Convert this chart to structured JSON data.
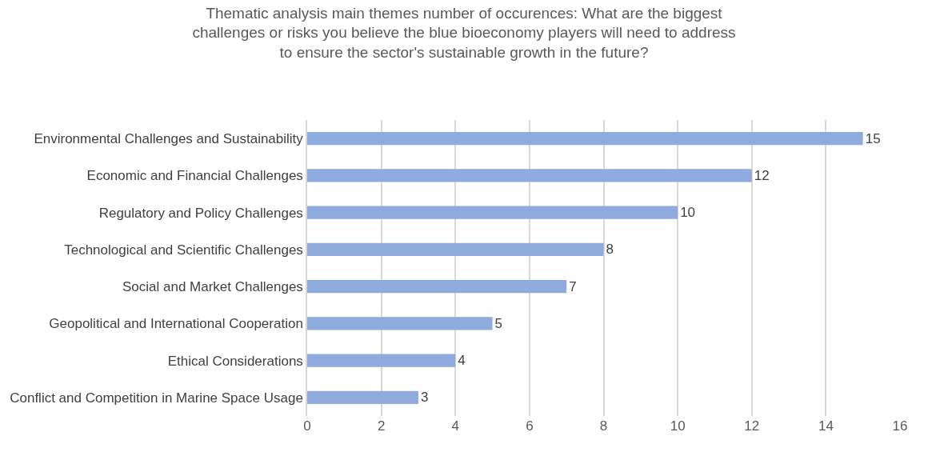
{
  "chart_data": {
    "type": "bar",
    "orientation": "horizontal",
    "title": "Thematic analysis main themes number of occurences: What are the biggest challenges or risks you believe the blue bioeconomy players will need to address to ensure the sector's sustainable growth in the future?",
    "categories": [
      "Environmental Challenges and Sustainability",
      "Economic and Financial Challenges",
      "Regulatory and Policy Challenges",
      "Technological and Scientific Challenges",
      "Social and Market Challenges",
      "Geopolitical and International Cooperation",
      "Ethical Considerations",
      "Conflict and Competition in Marine Space Usage"
    ],
    "values": [
      15,
      12,
      10,
      8,
      7,
      5,
      4,
      3
    ],
    "color": "#8faadc",
    "xlim": [
      0,
      16
    ],
    "xticks": [
      0,
      2,
      4,
      6,
      8,
      10,
      12,
      14,
      16
    ],
    "grid": "x",
    "data_labels": true
  }
}
